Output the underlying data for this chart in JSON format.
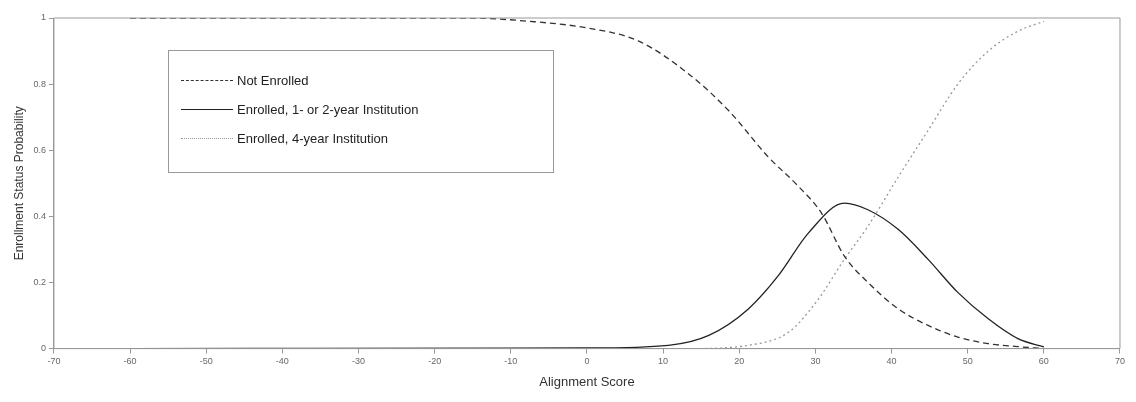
{
  "chart_data": {
    "type": "line",
    "xlabel": "Alignment Score",
    "ylabel": "Enrollment Status Probability",
    "xlim": [
      -70,
      70
    ],
    "xticks": [
      -70,
      -60,
      -50,
      -40,
      -30,
      -20,
      -10,
      0,
      10,
      20,
      30,
      40,
      50,
      60,
      70
    ],
    "ylim": [
      0,
      1
    ],
    "yticks": [
      0,
      0.2,
      0.4,
      0.6,
      0.8,
      1
    ],
    "grid": false,
    "legend": "top left",
    "marker": "none",
    "series": [
      {
        "name": "Not Enrolled",
        "color": "#333333",
        "line_style": "dashed",
        "x": [
          -60,
          -15.5,
          -7.6,
          0,
          6.8,
          13.4,
          18.6,
          23.8,
          27.8,
          30.8,
          33.8,
          36.9,
          40.9,
          44.8,
          48.7,
          52.7,
          56.6,
          60
        ],
        "values": [
          1,
          1,
          0.99,
          0.97,
          0.93,
          0.83,
          0.72,
          0.58,
          0.49,
          0.41,
          0.28,
          0.2,
          0.12,
          0.07,
          0.035,
          0.015,
          0.006,
          0
        ]
      },
      {
        "name": "Enrolled, 1- or 2-year Institution",
        "color": "#222222",
        "line_style": "solid",
        "x": [
          -60,
          0,
          10.7,
          16,
          21.2,
          25.1,
          29.1,
          33.8,
          36.9,
          40.9,
          44.8,
          48.7,
          52.7,
          56.6,
          60
        ],
        "values": [
          0,
          0.002,
          0.01,
          0.04,
          0.12,
          0.22,
          0.35,
          0.44,
          0.42,
          0.36,
          0.27,
          0.17,
          0.09,
          0.03,
          0.005
        ]
      },
      {
        "name": "Enrolled, 4-year Institution",
        "color": "#999999",
        "line_style": "dotted",
        "x": [
          -60,
          13.4,
          21.2,
          26.5,
          30.4,
          33.8,
          36.9,
          40.9,
          44.8,
          48.7,
          52.7,
          56.6,
          60
        ],
        "values": [
          0,
          0,
          0.01,
          0.05,
          0.15,
          0.27,
          0.37,
          0.52,
          0.66,
          0.8,
          0.9,
          0.96,
          0.99
        ]
      }
    ]
  }
}
